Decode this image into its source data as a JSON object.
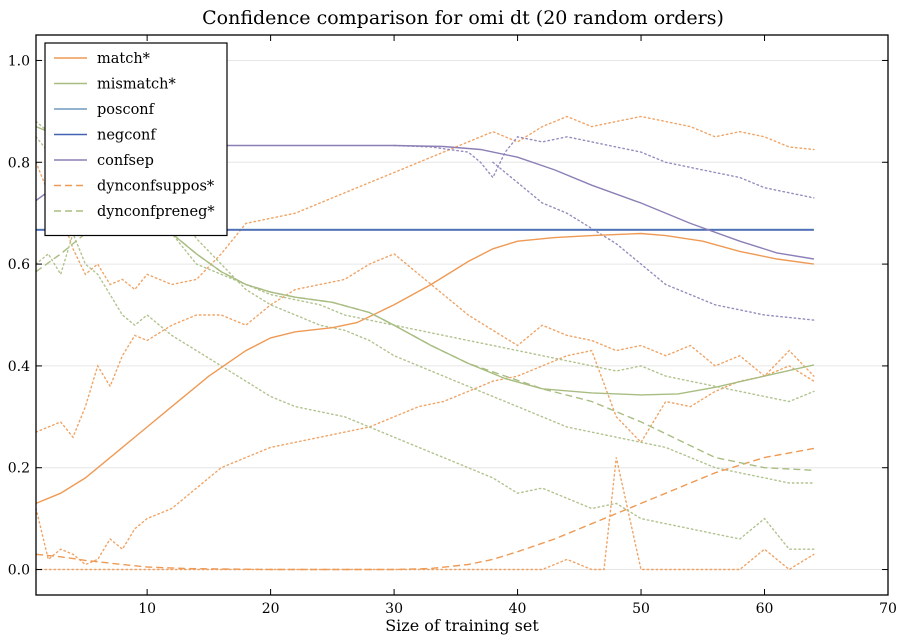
{
  "chart_data": {
    "type": "line",
    "title": "Confidence comparison for omi dt (20 random orders)",
    "xlabel": "Size of training set",
    "ylabel": "",
    "xlim": [
      1,
      70
    ],
    "ylim": [
      -0.05,
      1.05
    ],
    "xticks": [
      10,
      20,
      30,
      40,
      50,
      60,
      70
    ],
    "yticks": [
      0.0,
      0.2,
      0.4,
      0.6,
      0.8,
      1.0
    ],
    "ytick_labels": [
      "0.0",
      "0.2",
      "0.4",
      "0.6",
      "0.8",
      "1.0"
    ],
    "grid": "horizontal",
    "legend_position": "top-left",
    "colors": {
      "match": "#ee9a55",
      "mismatch": "#a9bd82",
      "posconf": "#6e98bd",
      "negconf": "#4462b4",
      "confsep": "#8c7fb6",
      "dynconfsuppos": "#ee9a55",
      "dynconfpreneg": "#a9bd82"
    },
    "series": [
      {
        "name": "match*",
        "style": "solid",
        "color": "#ee9a55",
        "x": [
          1,
          3,
          5,
          8,
          10,
          12,
          15,
          18,
          20,
          22,
          25,
          27,
          30,
          33,
          36,
          38,
          40,
          43,
          46,
          50,
          52,
          55,
          58,
          61,
          64
        ],
        "y": [
          0.13,
          0.15,
          0.18,
          0.24,
          0.28,
          0.32,
          0.38,
          0.43,
          0.455,
          0.467,
          0.475,
          0.485,
          0.52,
          0.56,
          0.605,
          0.63,
          0.645,
          0.652,
          0.656,
          0.66,
          0.656,
          0.645,
          0.625,
          0.61,
          0.6
        ]
      },
      {
        "name": "mismatch*",
        "style": "solid",
        "color": "#a9bd82",
        "x": [
          1,
          3,
          5,
          7,
          10,
          12,
          14,
          16,
          18,
          20,
          22,
          25,
          28,
          30,
          33,
          36,
          39,
          42,
          46,
          50,
          53,
          56,
          60,
          64
        ],
        "y": [
          0.87,
          0.85,
          0.82,
          0.77,
          0.7,
          0.66,
          0.62,
          0.585,
          0.56,
          0.545,
          0.535,
          0.525,
          0.505,
          0.48,
          0.44,
          0.405,
          0.375,
          0.355,
          0.347,
          0.343,
          0.345,
          0.358,
          0.38,
          0.402
        ]
      },
      {
        "name": "posconf",
        "style": "solid",
        "color": "#6e98bd",
        "x": [
          1,
          64
        ],
        "y": [
          0.668,
          0.668
        ]
      },
      {
        "name": "negconf",
        "style": "solid",
        "color": "#4462b4",
        "x": [
          1,
          64
        ],
        "y": [
          0.667,
          0.667
        ]
      },
      {
        "name": "confsep",
        "style": "solid",
        "color": "#8c7fb6",
        "x": [
          1,
          3,
          5,
          8,
          12,
          15,
          20,
          25,
          30,
          34,
          37,
          40,
          43,
          46,
          50,
          54,
          58,
          61,
          64
        ],
        "y": [
          0.725,
          0.76,
          0.8,
          0.825,
          0.832,
          0.833,
          0.833,
          0.833,
          0.833,
          0.831,
          0.825,
          0.81,
          0.785,
          0.755,
          0.72,
          0.68,
          0.645,
          0.622,
          0.61
        ]
      },
      {
        "name": "dynconfsuppos*",
        "style": "dashed",
        "color": "#ee9a55",
        "x": [
          1,
          3,
          5,
          8,
          10,
          13,
          16,
          20,
          25,
          30,
          33,
          36,
          38,
          40,
          43,
          46,
          50,
          53,
          56,
          60,
          64
        ],
        "y": [
          0.03,
          0.025,
          0.018,
          0.01,
          0.005,
          0.002,
          0.001,
          0.0,
          0.0,
          0.0,
          0.002,
          0.01,
          0.02,
          0.035,
          0.06,
          0.09,
          0.13,
          0.16,
          0.19,
          0.22,
          0.238
        ]
      },
      {
        "name": "dynconfpreneg*",
        "style": "dashed",
        "color": "#a9bd82",
        "x": [
          1,
          3,
          5,
          7,
          10,
          12,
          14,
          16,
          18,
          20,
          22,
          25,
          28,
          30,
          33,
          36,
          39,
          42,
          46,
          50,
          53,
          56,
          60,
          64
        ],
        "y": [
          0.585,
          0.62,
          0.66,
          0.7,
          0.7,
          0.66,
          0.62,
          0.585,
          0.56,
          0.545,
          0.535,
          0.525,
          0.505,
          0.48,
          0.44,
          0.405,
          0.38,
          0.355,
          0.33,
          0.29,
          0.255,
          0.22,
          0.2,
          0.195
        ]
      }
    ],
    "dotted_series": [
      {
        "color": "#ee9a55",
        "x": [
          1,
          2,
          3,
          4,
          5,
          6,
          7,
          8,
          9,
          10,
          12,
          14,
          16,
          18,
          20,
          22,
          24,
          26,
          28,
          30,
          32,
          34,
          36,
          38,
          40,
          42,
          44,
          46,
          48,
          50,
          52,
          54,
          56,
          58,
          60,
          62,
          64
        ],
        "y": [
          0.8,
          0.74,
          0.7,
          0.63,
          0.58,
          0.6,
          0.56,
          0.57,
          0.55,
          0.58,
          0.56,
          0.57,
          0.62,
          0.68,
          0.69,
          0.7,
          0.72,
          0.74,
          0.76,
          0.78,
          0.8,
          0.82,
          0.84,
          0.86,
          0.84,
          0.87,
          0.89,
          0.87,
          0.88,
          0.89,
          0.88,
          0.87,
          0.85,
          0.86,
          0.85,
          0.83,
          0.825
        ]
      },
      {
        "color": "#ee9a55",
        "x": [
          1,
          2,
          3,
          4,
          5,
          6,
          7,
          8,
          9,
          10,
          12,
          14,
          16,
          18,
          20,
          22,
          24,
          26,
          28,
          30,
          32,
          34,
          36,
          38,
          40,
          42,
          44,
          46,
          48,
          50,
          52,
          54,
          56,
          58,
          60,
          62,
          64
        ],
        "y": [
          0.27,
          0.28,
          0.29,
          0.26,
          0.32,
          0.4,
          0.36,
          0.42,
          0.46,
          0.45,
          0.48,
          0.5,
          0.5,
          0.48,
          0.52,
          0.55,
          0.56,
          0.57,
          0.6,
          0.62,
          0.58,
          0.54,
          0.5,
          0.47,
          0.44,
          0.48,
          0.46,
          0.45,
          0.43,
          0.44,
          0.42,
          0.44,
          0.4,
          0.42,
          0.38,
          0.43,
          0.38
        ]
      },
      {
        "color": "#ee9a55",
        "x": [
          1,
          2,
          3,
          4,
          5,
          6,
          7,
          8,
          9,
          10,
          12,
          14,
          16,
          18,
          20,
          22,
          24,
          26,
          28,
          30,
          32,
          34,
          36,
          38,
          40,
          42,
          44,
          46,
          48,
          50,
          52,
          54,
          56,
          58,
          60,
          62,
          64
        ],
        "y": [
          0.12,
          0.02,
          0.04,
          0.03,
          0.01,
          0.02,
          0.06,
          0.04,
          0.08,
          0.1,
          0.12,
          0.16,
          0.2,
          0.22,
          0.24,
          0.25,
          0.26,
          0.27,
          0.28,
          0.3,
          0.32,
          0.33,
          0.35,
          0.37,
          0.38,
          0.4,
          0.42,
          0.43,
          0.3,
          0.25,
          0.33,
          0.32,
          0.35,
          0.37,
          0.38,
          0.4,
          0.37
        ]
      },
      {
        "color": "#ee9a55",
        "x": [
          1,
          3,
          5,
          8,
          10,
          15,
          20,
          25,
          30,
          35,
          38,
          40,
          42,
          44,
          46,
          47,
          48,
          50,
          52,
          54,
          56,
          58,
          60,
          62,
          64
        ],
        "y": [
          0.0,
          0.0,
          0.0,
          0.0,
          0.0,
          0.0,
          0.0,
          0.0,
          0.0,
          0.0,
          0.0,
          0.0,
          0.0,
          0.02,
          0.0,
          0.0,
          0.22,
          0.0,
          0.0,
          0.0,
          0.0,
          0.0,
          0.04,
          0.0,
          0.03
        ]
      },
      {
        "color": "#a9bd82",
        "x": [
          1,
          2,
          3,
          4,
          5,
          6,
          7,
          8,
          9,
          10,
          12,
          14,
          16,
          18,
          20,
          22,
          24,
          26,
          28,
          30,
          32,
          34,
          36,
          38,
          40,
          42,
          44,
          46,
          48,
          50,
          52,
          54,
          56,
          58,
          60,
          62,
          64
        ],
        "y": [
          0.85,
          0.82,
          0.8,
          0.78,
          0.75,
          0.78,
          0.72,
          0.76,
          0.75,
          0.73,
          0.72,
          0.65,
          0.6,
          0.55,
          0.52,
          0.5,
          0.48,
          0.47,
          0.45,
          0.42,
          0.4,
          0.38,
          0.36,
          0.34,
          0.32,
          0.3,
          0.28,
          0.27,
          0.26,
          0.25,
          0.24,
          0.22,
          0.2,
          0.19,
          0.18,
          0.17,
          0.17
        ]
      },
      {
        "color": "#a9bd82",
        "x": [
          1,
          2,
          3,
          4,
          5,
          6,
          7,
          8,
          9,
          10,
          12,
          14,
          16,
          18,
          20,
          22,
          24,
          26,
          28,
          30,
          32,
          34,
          36,
          38,
          40,
          42,
          44,
          46,
          48,
          50,
          52,
          54,
          56,
          58,
          60,
          62,
          64
        ],
        "y": [
          0.6,
          0.62,
          0.58,
          0.66,
          0.6,
          0.58,
          0.54,
          0.5,
          0.48,
          0.5,
          0.46,
          0.43,
          0.4,
          0.37,
          0.34,
          0.32,
          0.31,
          0.3,
          0.28,
          0.26,
          0.24,
          0.22,
          0.2,
          0.18,
          0.15,
          0.16,
          0.14,
          0.12,
          0.13,
          0.1,
          0.09,
          0.08,
          0.07,
          0.06,
          0.1,
          0.04,
          0.04
        ]
      },
      {
        "color": "#a9bd82",
        "x": [
          1,
          2,
          3,
          4,
          5,
          6,
          7,
          8,
          9,
          10,
          12,
          14,
          16,
          18,
          20,
          22,
          24,
          26,
          28,
          30,
          32,
          34,
          36,
          38,
          40,
          42,
          44,
          46,
          48,
          50,
          52,
          54,
          56,
          58,
          60,
          62,
          64
        ],
        "y": [
          0.88,
          0.86,
          0.84,
          0.82,
          0.8,
          0.78,
          0.76,
          0.75,
          0.72,
          0.7,
          0.66,
          0.6,
          0.58,
          0.56,
          0.54,
          0.53,
          0.52,
          0.5,
          0.49,
          0.48,
          0.47,
          0.46,
          0.45,
          0.44,
          0.43,
          0.42,
          0.41,
          0.4,
          0.39,
          0.4,
          0.38,
          0.37,
          0.36,
          0.35,
          0.34,
          0.33,
          0.35
        ]
      },
      {
        "color": "#8c7fb6",
        "x": [
          30,
          33,
          36,
          37,
          38,
          39,
          40,
          42,
          44,
          46,
          48,
          50,
          52,
          54,
          56,
          58,
          60,
          62,
          64
        ],
        "y": [
          0.833,
          0.83,
          0.82,
          0.8,
          0.77,
          0.82,
          0.85,
          0.84,
          0.85,
          0.84,
          0.83,
          0.82,
          0.8,
          0.79,
          0.78,
          0.77,
          0.75,
          0.74,
          0.73
        ]
      },
      {
        "color": "#8c7fb6",
        "x": [
          38,
          40,
          42,
          44,
          46,
          48,
          50,
          52,
          54,
          56,
          58,
          60,
          62,
          64
        ],
        "y": [
          0.8,
          0.76,
          0.72,
          0.7,
          0.67,
          0.64,
          0.6,
          0.56,
          0.54,
          0.52,
          0.51,
          0.5,
          0.495,
          0.49
        ]
      }
    ]
  }
}
